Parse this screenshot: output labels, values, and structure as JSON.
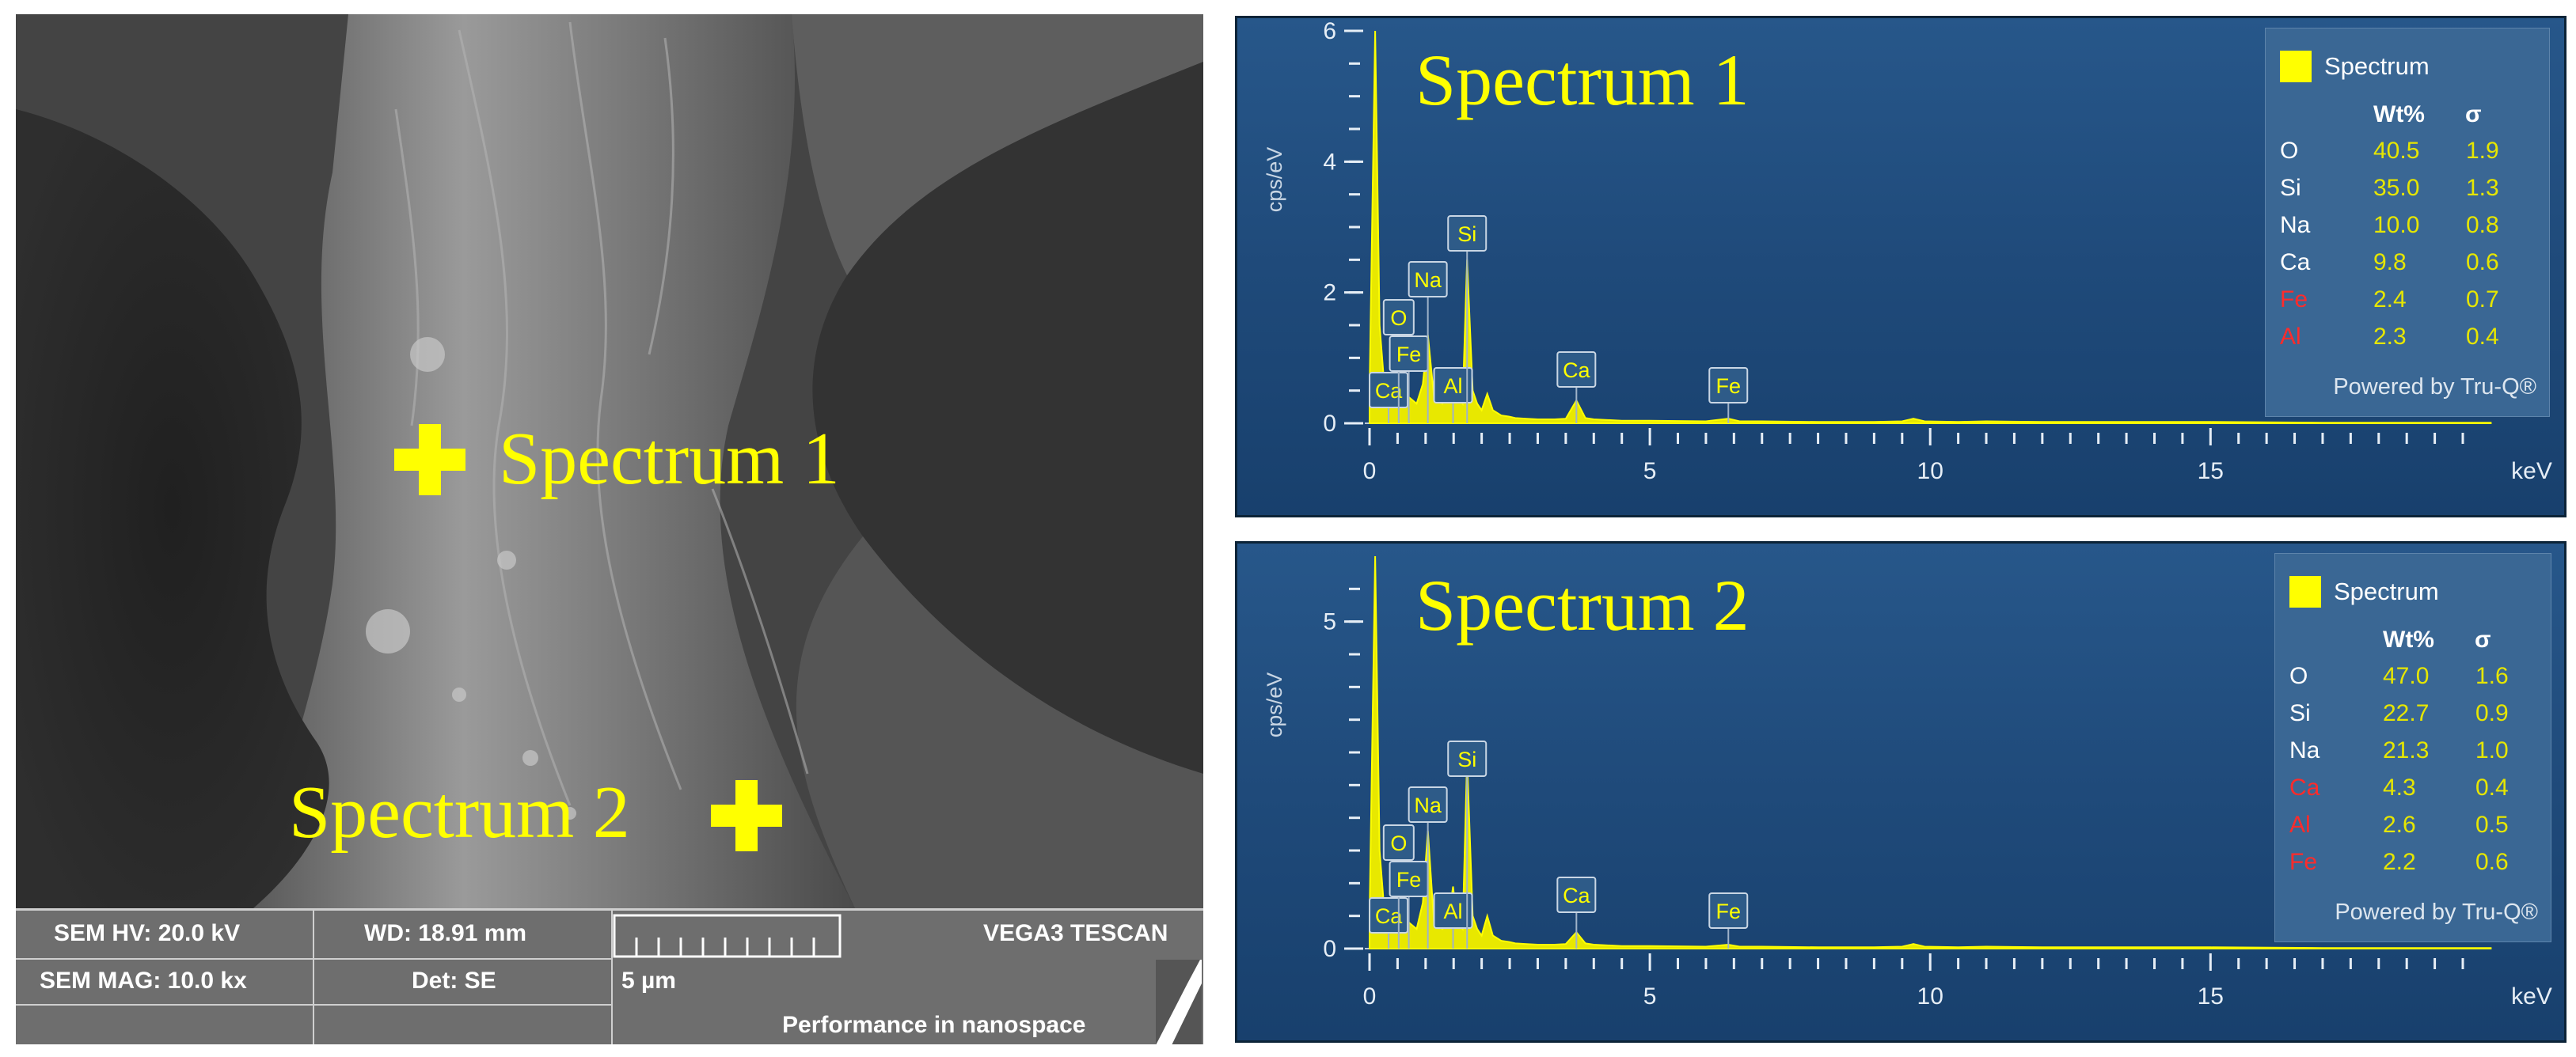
{
  "sem": {
    "marker_labels": [
      "Spectrum 1",
      "Spectrum 2"
    ],
    "info": {
      "hv": "SEM HV: 20.0 kV",
      "wd": "WD: 18.91 mm",
      "mag": "SEM MAG: 10.0 kx",
      "det": "Det: SE",
      "scale": "5 µm",
      "brand": "VEGA3 TESCAN",
      "tagline": "Performance in nanospace"
    }
  },
  "eds_panels": [
    {
      "title": "Spectrum 1",
      "ylabel": "cps/eV",
      "xlabel": "keV",
      "legend": {
        "name": "Spectrum",
        "col_wt": "Wt%",
        "col_sigma": "σ",
        "rows": [
          {
            "el": "O",
            "wt": "40.5",
            "sigma": "1.9",
            "color": "#ffffff"
          },
          {
            "el": "Si",
            "wt": "35.0",
            "sigma": "1.3",
            "color": "#ffffff"
          },
          {
            "el": "Na",
            "wt": "10.0",
            "sigma": "0.8",
            "color": "#ffffff"
          },
          {
            "el": "Ca",
            "wt": "9.8",
            "sigma": "0.6",
            "color": "#ffffff"
          },
          {
            "el": "Fe",
            "wt": "2.4",
            "sigma": "0.7",
            "color": "#ff2b2b"
          },
          {
            "el": "Al",
            "wt": "2.3",
            "sigma": "0.4",
            "color": "#ff2b2b"
          }
        ],
        "powered": "Powered by Tru-Q®"
      }
    },
    {
      "title": "Spectrum 2",
      "ylabel": "cps/eV",
      "xlabel": "keV",
      "legend": {
        "name": "Spectrum",
        "col_wt": "Wt%",
        "col_sigma": "σ",
        "rows": [
          {
            "el": "O",
            "wt": "47.0",
            "sigma": "1.6",
            "color": "#ffffff"
          },
          {
            "el": "Si",
            "wt": "22.7",
            "sigma": "0.9",
            "color": "#ffffff"
          },
          {
            "el": "Na",
            "wt": "21.3",
            "sigma": "1.0",
            "color": "#ffffff"
          },
          {
            "el": "Ca",
            "wt": "4.3",
            "sigma": "0.4",
            "color": "#ff2b2b"
          },
          {
            "el": "Al",
            "wt": "2.6",
            "sigma": "0.5",
            "color": "#ff2b2b"
          },
          {
            "el": "Fe",
            "wt": "2.2",
            "sigma": "0.6",
            "color": "#ff2b2b"
          }
        ],
        "powered": "Powered by Tru-Q®"
      }
    }
  ],
  "chart_data": [
    {
      "type": "line",
      "title": "Spectrum 1",
      "ylabel": "cps/eV",
      "xlabel": "keV",
      "xlim": [
        0,
        20
      ],
      "ylim": [
        0,
        6
      ],
      "x_ticks": [
        "0",
        "5",
        "10",
        "15"
      ],
      "y_ticks": [
        "0",
        "2",
        "4",
        "6"
      ],
      "peak_labels": [
        "Ca",
        "O",
        "Fe",
        "Na",
        "Al",
        "Si",
        "Ca",
        "Fe"
      ],
      "series": [
        {
          "x": [
            0.0,
            0.1,
            0.18,
            0.28,
            0.34,
            0.4,
            0.52,
            0.6,
            0.7,
            0.84,
            0.95,
            1.04,
            1.15,
            1.3,
            1.4,
            1.49,
            1.56,
            1.66,
            1.74,
            1.84,
            1.92,
            2.0,
            2.1,
            2.2,
            2.35,
            2.5,
            2.6,
            2.8,
            3.0,
            3.3,
            3.5,
            3.69,
            3.85,
            4.0,
            4.5,
            5.0,
            6.0,
            6.4,
            6.6,
            7.0,
            8.0,
            9.0,
            9.5,
            9.7,
            9.9,
            10.5,
            11.0,
            12.0,
            13.0,
            15.0,
            17.0,
            20.0
          ],
          "y": [
            0.5,
            6.0,
            1.5,
            0.4,
            0.6,
            0.3,
            0.75,
            0.3,
            0.4,
            0.3,
            0.6,
            1.35,
            0.4,
            0.3,
            0.4,
            0.75,
            0.4,
            0.3,
            2.5,
            0.5,
            0.3,
            0.2,
            0.45,
            0.2,
            0.12,
            0.1,
            0.08,
            0.07,
            0.06,
            0.06,
            0.07,
            0.35,
            0.08,
            0.06,
            0.04,
            0.04,
            0.03,
            0.07,
            0.03,
            0.03,
            0.02,
            0.02,
            0.03,
            0.07,
            0.03,
            0.02,
            0.03,
            0.02,
            0.02,
            0.02,
            0.01,
            0.01
          ]
        }
      ]
    },
    {
      "type": "line",
      "title": "Spectrum 2",
      "ylabel": "cps/eV",
      "xlabel": "keV",
      "xlim": [
        0,
        20
      ],
      "ylim": [
        0,
        6
      ],
      "x_ticks": [
        "0",
        "5",
        "10",
        "15"
      ],
      "y_ticks": [
        "0",
        "5"
      ],
      "peak_labels": [
        "Ca",
        "O",
        "Fe",
        "Na",
        "Al",
        "Si",
        "Ca",
        "Fe"
      ],
      "series": [
        {
          "x": [
            0.0,
            0.1,
            0.18,
            0.28,
            0.34,
            0.4,
            0.52,
            0.6,
            0.7,
            0.84,
            0.95,
            1.04,
            1.15,
            1.3,
            1.4,
            1.49,
            1.56,
            1.66,
            1.74,
            1.84,
            1.92,
            2.0,
            2.1,
            2.2,
            2.35,
            2.5,
            2.6,
            2.8,
            3.0,
            3.3,
            3.5,
            3.69,
            3.85,
            4.0,
            4.5,
            5.0,
            6.0,
            6.4,
            6.6,
            7.0,
            8.0,
            9.0,
            9.5,
            9.7,
            9.9,
            10.5,
            11.0,
            12.0,
            13.0,
            15.0,
            17.0,
            20.0
          ],
          "y": [
            0.5,
            6.0,
            1.5,
            0.4,
            0.6,
            0.3,
            0.95,
            0.3,
            0.4,
            0.3,
            0.7,
            1.8,
            0.4,
            0.3,
            0.4,
            0.95,
            0.4,
            0.3,
            2.9,
            0.5,
            0.3,
            0.2,
            0.5,
            0.2,
            0.12,
            0.1,
            0.08,
            0.07,
            0.06,
            0.06,
            0.07,
            0.25,
            0.08,
            0.06,
            0.04,
            0.04,
            0.03,
            0.06,
            0.03,
            0.03,
            0.02,
            0.02,
            0.03,
            0.07,
            0.03,
            0.02,
            0.03,
            0.02,
            0.02,
            0.02,
            0.01,
            0.01
          ]
        }
      ]
    }
  ]
}
